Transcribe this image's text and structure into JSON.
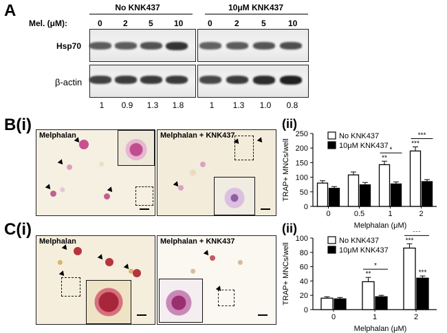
{
  "panel_a": {
    "letter": "A",
    "group_labels": [
      "No KNK437",
      "10μM KNK437"
    ],
    "dose_label": "Mel. (μM):",
    "doses": [
      "0",
      "2",
      "5",
      "10",
      "0",
      "2",
      "5",
      "10"
    ],
    "row_labels": [
      "Hsp70",
      "β-actin"
    ],
    "ratios": [
      "1",
      "0.9",
      "1.3",
      "1.8",
      "1",
      "1.3",
      "1.0",
      "0.8"
    ],
    "hsp70_intensity": [
      0.55,
      0.55,
      0.62,
      0.85,
      0.5,
      0.55,
      0.6,
      0.65
    ],
    "actin_intensity": [
      0.75,
      0.78,
      0.8,
      0.8,
      0.7,
      0.78,
      0.9,
      1.0
    ]
  },
  "panel_b": {
    "letter": "B(i)",
    "sub": "(ii)",
    "image_labels": [
      "Melphalan",
      "Melphalan + KNK437"
    ]
  },
  "panel_c": {
    "letter": "C(i)",
    "sub": "(ii)",
    "image_labels": [
      "Melphalan",
      "Melphalan + KNK437"
    ]
  },
  "chart_data": [
    {
      "type": "bar",
      "categories": [
        "0",
        "0.5",
        "1",
        "2"
      ],
      "series": [
        {
          "name": "No KNK437",
          "values": [
            80,
            108,
            143,
            190
          ]
        },
        {
          "name": "10μM KNK437",
          "values": [
            62,
            74,
            77,
            85
          ]
        }
      ],
      "errors": [
        [
          8,
          10,
          12,
          14
        ],
        [
          6,
          8,
          7,
          7
        ]
      ],
      "xlabel": "Melphalan (μM)",
      "ylabel": "TRAP+ MNCs/well",
      "ylim": [
        0,
        250
      ],
      "yticks": [
        "0",
        "50",
        "100",
        "150",
        "200",
        "250"
      ],
      "stars_above": [
        [
          "",
          "",
          "**",
          "***"
        ],
        [
          "",
          "",
          "",
          ""
        ]
      ],
      "comparisons": [
        {
          "category": "1",
          "label": "*"
        },
        {
          "category": "2",
          "label": "***"
        }
      ]
    },
    {
      "type": "bar",
      "categories": [
        "0",
        "1",
        "2"
      ],
      "series": [
        {
          "name": "No KNK437",
          "values": [
            16,
            39,
            86
          ]
        },
        {
          "name": "10μM KNK437",
          "values": [
            15,
            18,
            44
          ]
        }
      ],
      "errors": [
        [
          2,
          6,
          6
        ],
        [
          2,
          2,
          3
        ]
      ],
      "xlabel": "Melphalan (μM)",
      "ylabel": "TRAP+ MNCs/well",
      "ylim": [
        0,
        100
      ],
      "yticks": [
        "0",
        "20",
        "40",
        "60",
        "80",
        "100"
      ],
      "stars_above": [
        [
          "",
          "**",
          "***"
        ],
        [
          "",
          "",
          "***"
        ]
      ],
      "comparisons": [
        {
          "category": "1",
          "label": "*"
        },
        {
          "category": "2",
          "label": "***"
        }
      ]
    }
  ]
}
